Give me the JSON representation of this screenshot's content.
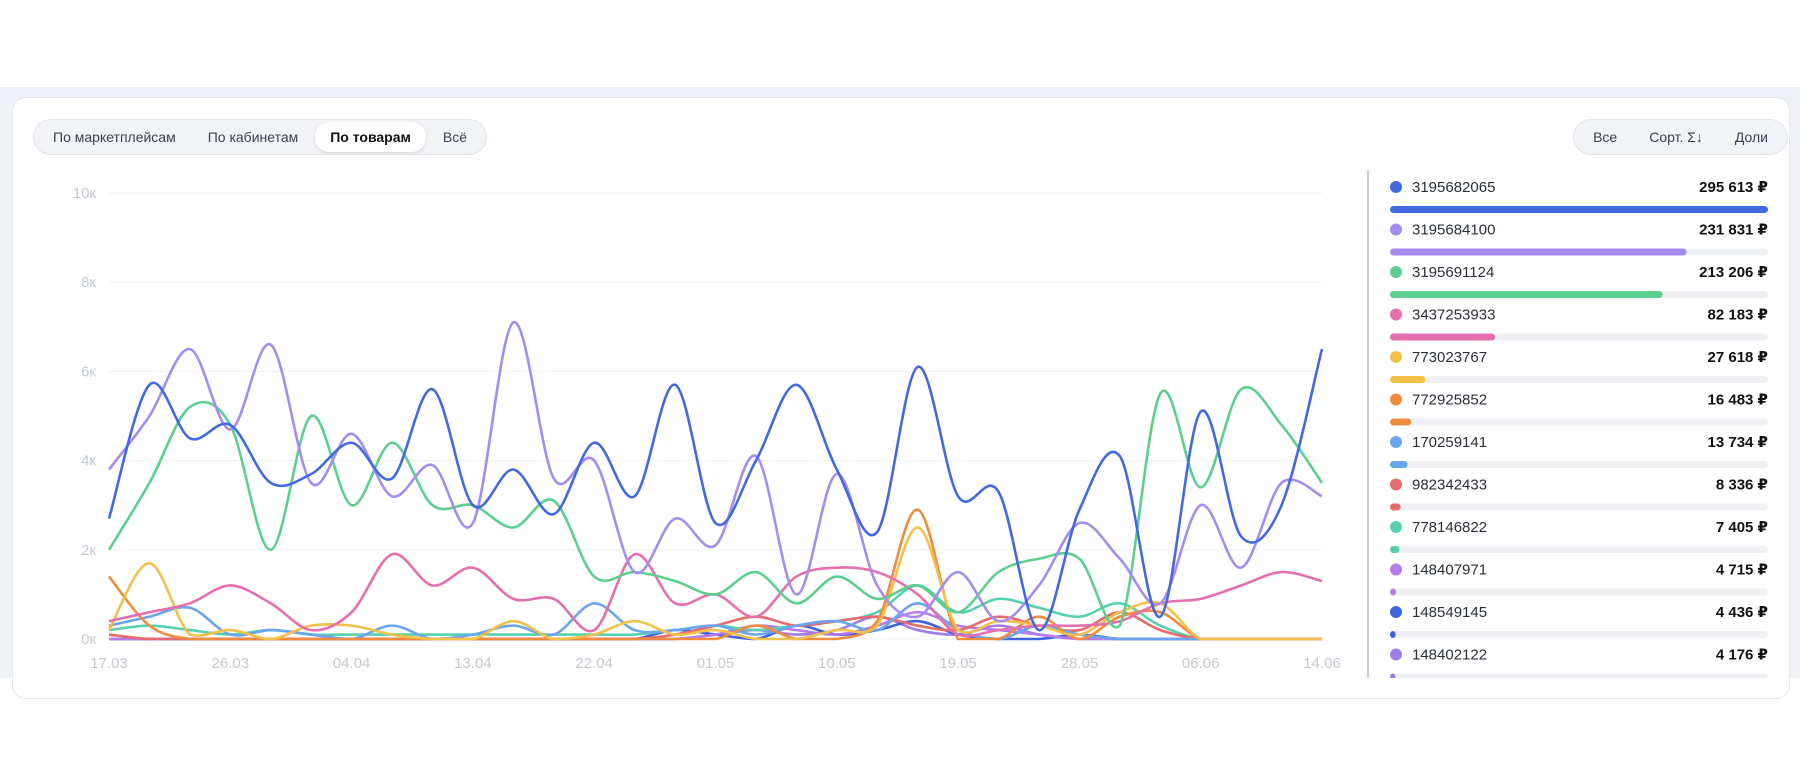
{
  "tabs": [
    "По маркетплейсам",
    "По кабинетам",
    "По товарам",
    "Всё"
  ],
  "selected_tab": 2,
  "buttons": [
    "Все",
    "Сорт. Σ↓",
    "Доли"
  ],
  "chart_data": {
    "type": "line",
    "categories": [
      "17.03",
      null,
      null,
      "26.03",
      null,
      null,
      "04.04",
      null,
      null,
      "13.04",
      null,
      null,
      "22.04",
      null,
      null,
      "01.05",
      null,
      null,
      "10.05",
      null,
      null,
      "19.05",
      null,
      null,
      "28.05",
      null,
      null,
      "06.06",
      null,
      null,
      "14.06"
    ],
    "ylim": [
      0,
      10000
    ],
    "yticks": [
      {
        "value": 0,
        "label": "0к"
      },
      {
        "value": 2000,
        "label": "2к"
      },
      {
        "value": 4000,
        "label": "4к"
      },
      {
        "value": 6000,
        "label": "6к"
      },
      {
        "value": 8000,
        "label": "8к"
      },
      {
        "value": 10000,
        "label": "10к"
      }
    ],
    "grid": true,
    "series": [
      {
        "name": "3195682065",
        "color": "#4169e1",
        "total": 295613,
        "total_label": "295 613 ₽",
        "values": [
          2700,
          5700,
          4500,
          4800,
          3500,
          3700,
          4400,
          3600,
          5600,
          3000,
          3800,
          2800,
          4400,
          3200,
          5700,
          2600,
          4000,
          5700,
          3800,
          2400,
          6100,
          3200,
          3300,
          200,
          2900,
          4100,
          500,
          5100,
          2300,
          3000,
          6500
        ]
      },
      {
        "name": "3195684100",
        "color": "#a48cf0",
        "total": 231831,
        "total_label": "231 831 ₽",
        "values": [
          3800,
          5000,
          6500,
          4700,
          6600,
          3500,
          4600,
          3200,
          3900,
          2600,
          7100,
          3600,
          4000,
          1500,
          2700,
          2100,
          4100,
          1000,
          3700,
          1200,
          500,
          1500,
          400,
          1200,
          2600,
          1800,
          800,
          3000,
          1600,
          3500,
          3200
        ]
      },
      {
        "name": "3195691124",
        "color": "#5ccf8f",
        "total": 213206,
        "total_label": "213 206 ₽",
        "values": [
          2000,
          3500,
          5200,
          4800,
          2000,
          5000,
          3000,
          4400,
          3000,
          3000,
          2500,
          3100,
          1400,
          1500,
          1300,
          1000,
          1500,
          800,
          1400,
          900,
          1200,
          600,
          1500,
          1800,
          1800,
          300,
          5500,
          3400,
          5600,
          4800,
          3500
        ]
      },
      {
        "name": "3437253933",
        "color": "#e56fae",
        "total": 82183,
        "total_label": "82 183 ₽",
        "values": [
          400,
          600,
          800,
          1200,
          800,
          200,
          600,
          1900,
          1200,
          1600,
          900,
          900,
          200,
          1900,
          800,
          1000,
          500,
          1400,
          1600,
          1500,
          1000,
          100,
          200,
          300,
          300,
          400,
          800,
          900,
          1200,
          1500,
          1300
        ]
      },
      {
        "name": "773023767",
        "color": "#f3c04a",
        "total": 27618,
        "total_label": "27 618 ₽",
        "values": [
          200,
          1700,
          100,
          200,
          0,
          300,
          300,
          100,
          0,
          0,
          400,
          0,
          100,
          400,
          100,
          200,
          0,
          0,
          200,
          300,
          2500,
          200,
          400,
          300,
          100,
          600,
          800,
          0,
          0,
          0,
          0
        ]
      },
      {
        "name": "772925852",
        "color": "#f08c3c",
        "total": 16483,
        "total_label": "16 483 ₽",
        "values": [
          1400,
          300,
          0,
          0,
          0,
          0,
          0,
          0,
          0,
          0,
          0,
          0,
          0,
          0,
          0,
          0,
          300,
          0,
          0,
          400,
          2900,
          0,
          0,
          500,
          0,
          500,
          600,
          0,
          0,
          0,
          0
        ]
      },
      {
        "name": "170259141",
        "color": "#6aa5f0",
        "total": 13734,
        "total_label": "13 734 ₽",
        "values": [
          300,
          500,
          700,
          100,
          200,
          100,
          0,
          300,
          0,
          100,
          300,
          100,
          800,
          200,
          200,
          300,
          100,
          300,
          400,
          200,
          800,
          200,
          0,
          300,
          100,
          0,
          0,
          0,
          0,
          0,
          0
        ]
      },
      {
        "name": "982342433",
        "color": "#e86a6a",
        "total": 8336,
        "total_label": "8 336 ₽",
        "values": [
          100,
          0,
          0,
          0,
          0,
          0,
          0,
          0,
          0,
          0,
          0,
          0,
          0,
          0,
          100,
          300,
          500,
          300,
          400,
          500,
          300,
          200,
          500,
          300,
          200,
          600,
          200,
          0,
          0,
          0,
          0
        ]
      },
      {
        "name": "778146822",
        "color": "#56d0b0",
        "total": 7405,
        "total_label": "7 405 ₽",
        "values": [
          200,
          300,
          200,
          100,
          200,
          100,
          100,
          100,
          100,
          100,
          100,
          100,
          100,
          100,
          200,
          300,
          200,
          300,
          400,
          600,
          1200,
          600,
          900,
          700,
          500,
          800,
          300,
          0,
          0,
          0,
          0
        ]
      },
      {
        "name": "148407971",
        "color": "#b67be8",
        "total": 4715,
        "total_label": "4 715 ₽",
        "values": [
          0,
          0,
          0,
          0,
          0,
          0,
          0,
          0,
          0,
          0,
          0,
          0,
          0,
          0,
          0,
          100,
          300,
          200,
          100,
          300,
          600,
          300,
          200,
          100,
          0,
          0,
          0,
          0,
          0,
          0,
          0
        ]
      },
      {
        "name": "148549145",
        "color": "#3f62e0",
        "total": 4436,
        "total_label": "4 436 ₽",
        "values": [
          0,
          0,
          0,
          0,
          0,
          0,
          0,
          0,
          0,
          0,
          0,
          0,
          0,
          0,
          200,
          100,
          0,
          300,
          100,
          200,
          400,
          100,
          0,
          0,
          100,
          0,
          0,
          0,
          0,
          0,
          0
        ]
      },
      {
        "name": "148402122",
        "color": "#a07de8",
        "total": 4176,
        "total_label": "4 176 ₽",
        "values": [
          0,
          0,
          0,
          0,
          0,
          0,
          0,
          0,
          0,
          0,
          0,
          0,
          0,
          0,
          0,
          100,
          200,
          100,
          200,
          500,
          200,
          100,
          300,
          100,
          0,
          0,
          0,
          0,
          0,
          0,
          0
        ]
      }
    ]
  }
}
